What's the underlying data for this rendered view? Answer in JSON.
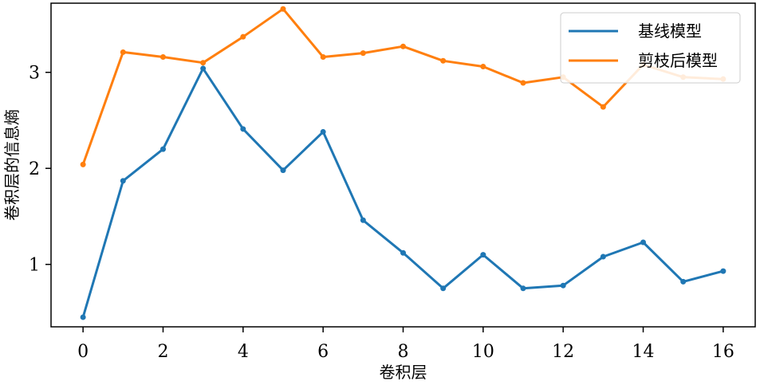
{
  "chart_data": {
    "type": "line",
    "xlabel": "卷积层",
    "ylabel": "卷积层的信息熵",
    "xlim": [
      -0.8,
      16.8
    ],
    "ylim": [
      0.35,
      3.72
    ],
    "xticks": [
      0,
      2,
      4,
      6,
      8,
      10,
      12,
      14,
      16
    ],
    "yticks": [
      1,
      2,
      3
    ],
    "grid": false,
    "legend_position": "top-right",
    "x": [
      0,
      1,
      2,
      3,
      4,
      5,
      6,
      7,
      8,
      9,
      10,
      11,
      12,
      13,
      14,
      15,
      16
    ],
    "series": [
      {
        "name": "基线模型",
        "color": "#1f77b4",
        "values": [
          0.45,
          1.87,
          2.2,
          3.04,
          2.41,
          1.98,
          2.38,
          1.46,
          1.12,
          0.75,
          1.1,
          0.75,
          0.78,
          1.08,
          1.23,
          0.82,
          0.93
        ]
      },
      {
        "name": "剪枝后模型",
        "color": "#ff7f0e",
        "values": [
          2.04,
          3.21,
          3.16,
          3.1,
          3.37,
          3.66,
          3.16,
          3.2,
          3.27,
          3.12,
          3.06,
          2.89,
          2.95,
          2.64,
          3.08,
          2.95,
          2.93
        ]
      }
    ]
  }
}
